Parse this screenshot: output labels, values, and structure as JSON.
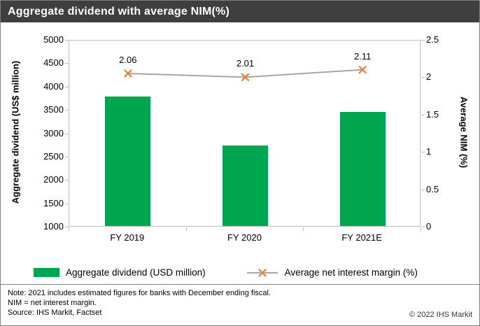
{
  "header": {
    "title": "Aggregate dividend with average NIM(%)"
  },
  "chart_data": {
    "type": "combo",
    "title": "Aggregate dividend with average NIM(%)",
    "categories": [
      "FY 2019",
      "FY 2020",
      "FY 2021E"
    ],
    "series": [
      {
        "name": "Aggregate dividend (USD million)",
        "type": "bar",
        "axis": "left",
        "color": "#00A550",
        "values": [
          3770,
          2720,
          3440
        ]
      },
      {
        "name": "Average net interest margin (%)",
        "type": "line",
        "axis": "right",
        "color": "#A6A6A6",
        "marker": "x",
        "marker_color": "#ED7D31",
        "values": [
          2.06,
          2.01,
          2.11
        ],
        "labels": [
          "2.06",
          "2.01",
          "2.11"
        ]
      }
    ],
    "left_axis": {
      "label": "Aggregate dividend (US$ million)",
      "min": 1000,
      "max": 5000,
      "step": 500,
      "ticks": [
        "5000",
        "4500",
        "4000",
        "3500",
        "3000",
        "2500",
        "2000",
        "1500",
        "1000"
      ]
    },
    "right_axis": {
      "label": "Average NIM (%)",
      "min": 0,
      "max": 2.5,
      "step": 0.5,
      "ticks": [
        "2.5",
        "2",
        "1.5",
        "1",
        "0.5",
        "0"
      ]
    },
    "grid": false,
    "legend_position": "bottom"
  },
  "footer": {
    "note1": "Note: 2021 includes estimated figures for banks with December ending fiscal.",
    "note2": "NIM = net interest margin.",
    "source": "Source: IHS Markit, Factset",
    "copyright": "© 2022 IHS Markit"
  },
  "colors": {
    "header_bg": "#3F3F3F",
    "bar": "#00A550",
    "line": "#A6A6A6",
    "marker": "#ED7D31",
    "plot_border": "#BFBFBF",
    "frame_border": "#7F7F7F"
  }
}
